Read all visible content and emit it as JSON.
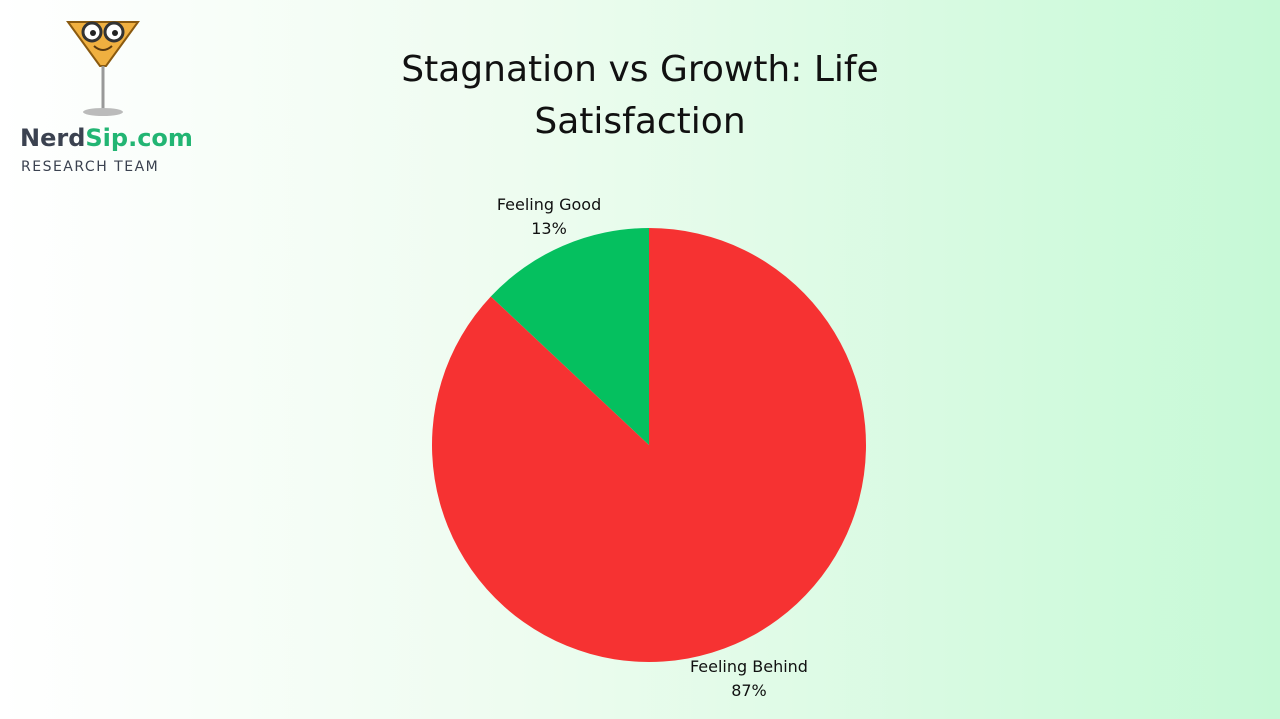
{
  "logo": {
    "brand_dark": "Nerd",
    "brand_green": "Sip.com",
    "tagline": "RESEARCH TEAM"
  },
  "chart_data": {
    "type": "pie",
    "title": "Stagnation vs Growth: Life Satisfaction",
    "categories": [
      "Feeling Behind",
      "Feeling Good"
    ],
    "values": [
      87,
      13
    ],
    "value_labels": [
      "87%",
      "13%"
    ],
    "colors": [
      "#f63232",
      "#05c05f"
    ]
  }
}
